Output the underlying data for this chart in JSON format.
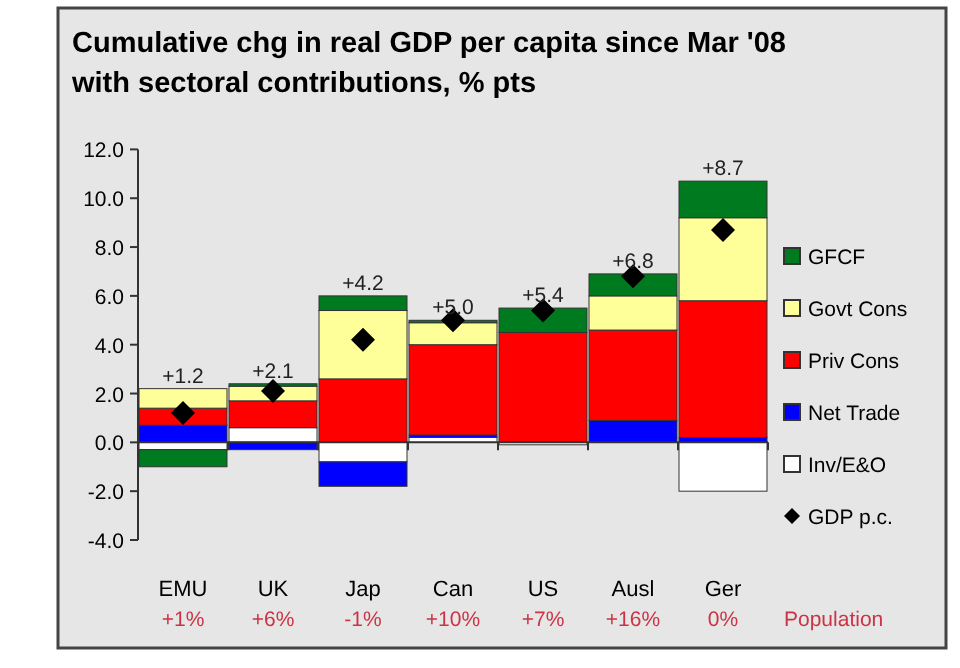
{
  "chart_data": {
    "type": "bar",
    "stacked": true,
    "title": "Cumulative chg in real GDP per capita since Mar '08 with sectoral contributions, % pts",
    "categories": [
      "EMU",
      "UK",
      "Jap",
      "Can",
      "US",
      "Ausl",
      "Ger"
    ],
    "series": [
      {
        "name": "Inv/E&O",
        "color": "#ffffff",
        "values": [
          -0.3,
          0.6,
          -0.8,
          0.2,
          -0.1,
          0,
          -2.0
        ]
      },
      {
        "name": "Net Trade",
        "color": "#0000ff",
        "values": [
          0.7,
          -0.3,
          -1.0,
          0.1,
          0,
          0.9,
          0.2
        ]
      },
      {
        "name": "Priv Cons",
        "color": "#ff0000",
        "values": [
          0.7,
          1.1,
          2.6,
          3.7,
          4.5,
          3.7,
          5.6
        ]
      },
      {
        "name": "Govt Cons",
        "color": "#ffff99",
        "values": [
          0.8,
          0.6,
          2.8,
          0.9,
          0,
          1.4,
          3.4
        ]
      },
      {
        "name": "GFCF",
        "color": "#007a1f",
        "values": [
          -0.7,
          0.1,
          0.6,
          0.1,
          1.0,
          0.9,
          1.5
        ]
      },
      {
        "name": "GDP p.c.",
        "type": "scatter",
        "marker": "diamond",
        "color": "#000000",
        "values": [
          1.2,
          2.1,
          4.2,
          5.0,
          5.4,
          6.8,
          8.7
        ],
        "value_labels": [
          "+1.2",
          "+2.1",
          "+4.2",
          "+5.0",
          "+5.4",
          "+6.8",
          "+8.7"
        ]
      }
    ],
    "ylim": [
      -4,
      12
    ],
    "yticks": [
      {
        "value": -4,
        "label": "-4.0"
      },
      {
        "value": -2,
        "label": "-2.0"
      },
      {
        "value": 0,
        "label": "0.0"
      },
      {
        "value": 2,
        "label": "2.0"
      },
      {
        "value": 4,
        "label": "4.0"
      },
      {
        "value": 6,
        "label": "6.0"
      },
      {
        "value": 8,
        "label": "8.0"
      },
      {
        "value": 10,
        "label": "10.0"
      },
      {
        "value": 12,
        "label": "12.0"
      }
    ],
    "legend": "right",
    "annotations": [
      "+1%",
      "+6%",
      "-1%",
      "+10%",
      "+7%",
      "+16%",
      "0%",
      "Population"
    ]
  }
}
